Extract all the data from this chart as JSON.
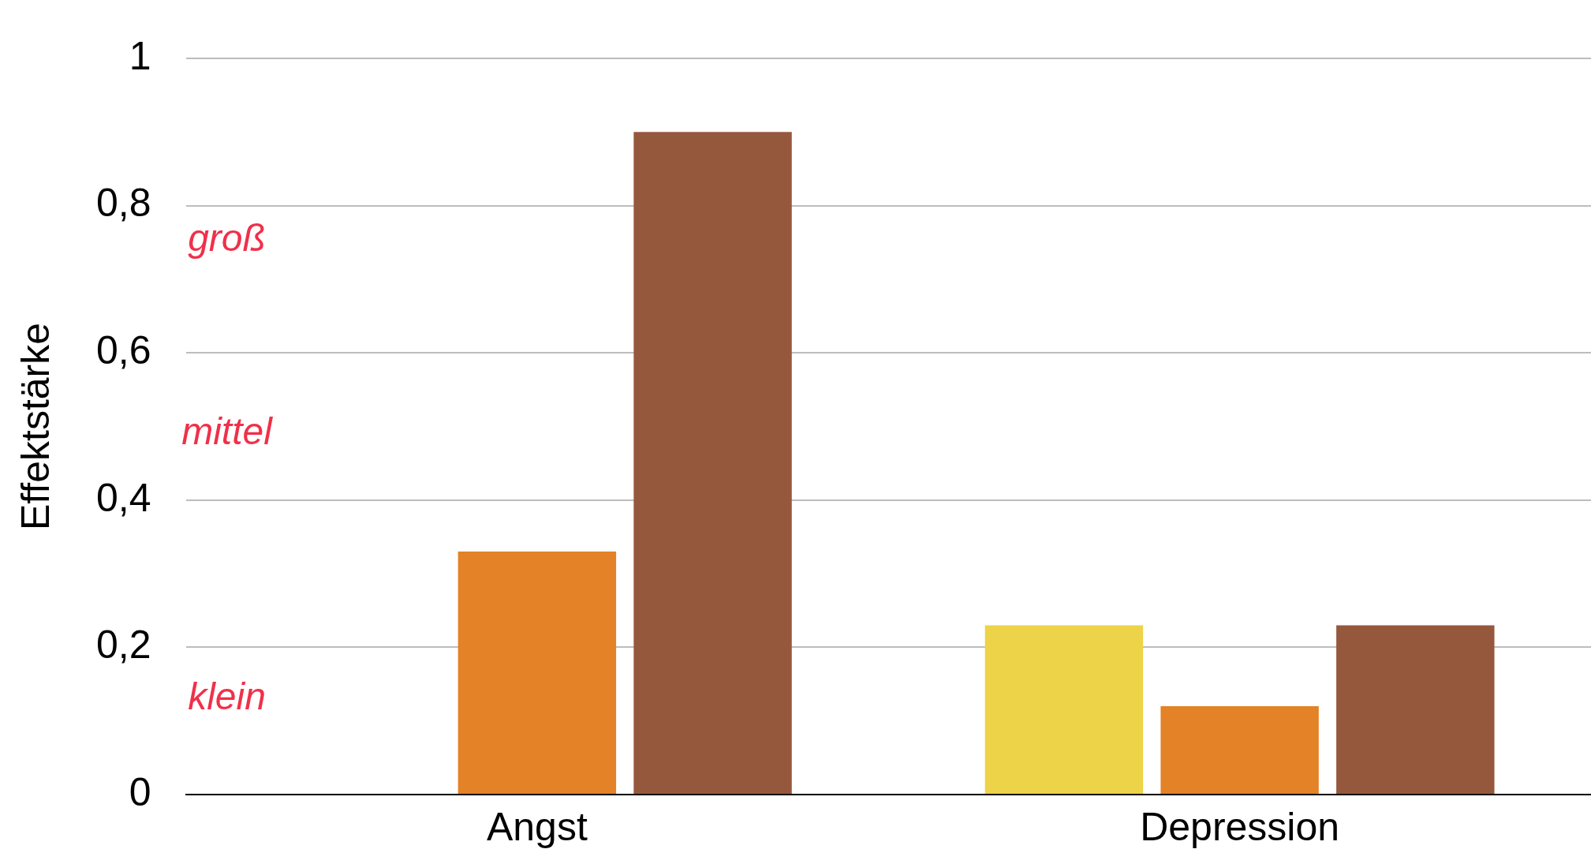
{
  "chart_data": {
    "type": "bar",
    "ylabel": "Effektstärke",
    "categories": [
      "Angst",
      "Depression"
    ],
    "series": [
      {
        "color": "#edd348",
        "values": [
          null,
          0.23
        ]
      },
      {
        "color": "#e38227",
        "values": [
          0.33,
          0.12
        ]
      },
      {
        "color": "#96583d",
        "values": [
          0.9,
          0.23
        ]
      }
    ],
    "ylim": [
      0,
      1
    ],
    "yticks": [
      {
        "value": 0,
        "label": "0"
      },
      {
        "value": 0.2,
        "label": "0,2"
      },
      {
        "value": 0.4,
        "label": "0,4"
      },
      {
        "value": 0.6,
        "label": "0,6"
      },
      {
        "value": 0.8,
        "label": "0,8"
      },
      {
        "value": 1,
        "label": "1"
      }
    ],
    "grid": "y",
    "legend": false,
    "annotations": [
      "groß",
      "mittel",
      "klein"
    ]
  }
}
